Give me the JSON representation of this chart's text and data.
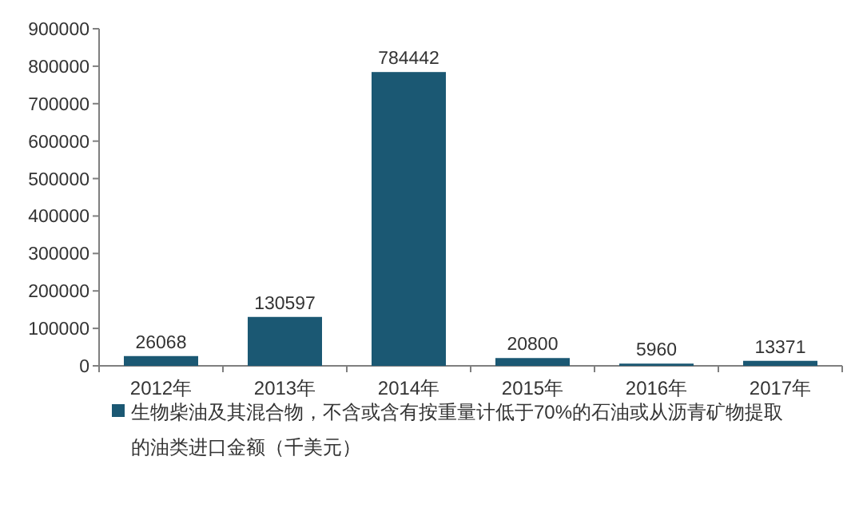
{
  "chart_data": {
    "type": "bar",
    "categories": [
      "2012年",
      "2013年",
      "2014年",
      "2015年",
      "2016年",
      "2017年"
    ],
    "series": [
      {
        "name": "生物柴油及其混合物，不含或含有按重量计低于70%的石油或从沥青矿物提取的油类进口金额（千美元）",
        "color": "#1b5873",
        "values": [
          26068,
          130597,
          784442,
          20800,
          5960,
          13371
        ]
      }
    ],
    "ylim": [
      0,
      900000
    ],
    "yticks": [
      0,
      100000,
      200000,
      300000,
      400000,
      500000,
      600000,
      700000,
      800000,
      900000
    ],
    "data_labels": true,
    "legend": "bottom"
  }
}
